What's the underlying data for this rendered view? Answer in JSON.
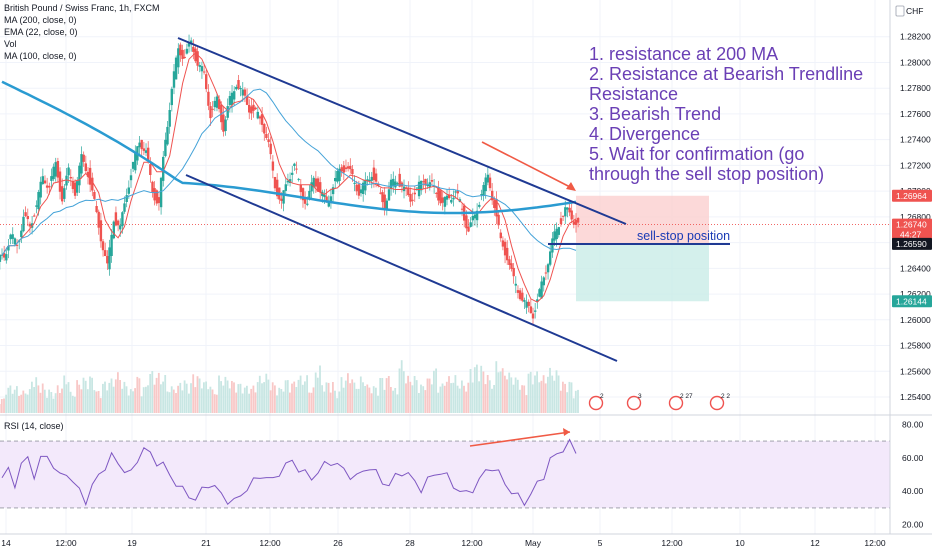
{
  "chart_data": {
    "type": "candlestick",
    "symbol_title": "British Pound / Swiss Franc, 1h, FXCM",
    "currency": "CHF",
    "indicators": [
      "MA (200, close, 0)",
      "EMA (22, close, 0)",
      "Vol",
      "MA (100, close, 0)"
    ],
    "price_axis": {
      "ticks": [
        "1.28200",
        "1.28000",
        "1.27800",
        "1.27600",
        "1.27400",
        "1.27200",
        "1.27000",
        "1.26800",
        "1.26600",
        "1.26400",
        "1.26200",
        "1.26000",
        "1.25800",
        "1.25600",
        "1.25400"
      ],
      "range": [
        1.253,
        1.284
      ]
    },
    "price_badges": [
      {
        "value": "1.26964",
        "color": "#ef5350"
      },
      {
        "value": "1.26740",
        "sub": "44:27",
        "color": "#ef5350"
      },
      {
        "value": "1.26590",
        "color": "#131722"
      },
      {
        "value": "1.26144",
        "color": "#26a69a"
      }
    ],
    "time_axis": [
      "14",
      "12:00",
      "19",
      "21",
      "12:00",
      "26",
      "28",
      "12:00",
      "May",
      "5",
      "12:00",
      "10",
      "12",
      "12:00"
    ],
    "rsi": {
      "title": "RSI (14, close)",
      "ticks": [
        "80.00",
        "60.00",
        "40.00",
        "20.00"
      ],
      "range": [
        15,
        85
      ],
      "upper": 70,
      "lower": 30
    },
    "close_path": [
      1.265,
      1.2665,
      1.2658,
      1.268,
      1.2672,
      1.269,
      1.271,
      1.2705,
      1.272,
      1.2695,
      1.2715,
      1.27,
      1.2725,
      1.2715,
      1.269,
      1.2665,
      1.264,
      1.268,
      1.267,
      1.27,
      1.272,
      1.274,
      1.273,
      1.27,
      1.269,
      1.274,
      1.278,
      1.281,
      1.2805,
      1.2815,
      1.28,
      1.279,
      1.276,
      1.277,
      1.275,
      1.277,
      1.2785,
      1.2775,
      1.2765,
      1.276,
      1.2755,
      1.2735,
      1.2705,
      1.269,
      1.271,
      1.272,
      1.27,
      1.269,
      1.271,
      1.27,
      1.269,
      1.2705,
      1.2715,
      1.272,
      1.271,
      1.27,
      1.2705,
      1.2715,
      1.27,
      1.269,
      1.2705,
      1.271,
      1.27,
      1.2695,
      1.27,
      1.271,
      1.2705,
      1.27,
      1.269,
      1.2695,
      1.27,
      1.2685,
      1.267,
      1.268,
      1.27,
      1.271,
      1.269,
      1.266,
      1.265,
      1.263,
      1.262,
      1.261,
      1.2605,
      1.262,
      1.264,
      1.266,
      1.2675,
      1.2685,
      1.268,
      1.2674
    ],
    "volume_path": [
      3,
      4,
      5,
      3,
      4,
      6,
      5,
      4,
      3,
      5,
      6,
      4,
      5,
      7,
      6,
      4,
      5,
      6,
      7,
      5,
      4,
      6,
      5,
      7,
      8,
      6,
      5,
      4,
      6,
      5,
      7,
      6,
      5,
      4,
      6,
      7,
      5,
      6,
      4,
      5,
      6,
      7,
      5,
      4,
      6,
      5,
      7,
      6,
      5,
      8,
      6,
      5,
      4,
      6,
      7,
      5,
      6,
      5,
      4,
      7,
      6,
      5,
      9,
      7,
      6,
      5,
      6,
      8,
      5,
      6,
      7,
      5,
      6,
      8,
      10,
      7,
      6,
      9,
      8,
      7,
      6,
      5,
      7,
      8,
      6,
      9,
      7,
      6,
      5,
      4
    ],
    "rsi_path": [
      48,
      52,
      45,
      55,
      60,
      50,
      58,
      62,
      55,
      48,
      52,
      45,
      40,
      35,
      42,
      50,
      55,
      60,
      58,
      52,
      50,
      60,
      65,
      62,
      58,
      55,
      50,
      45,
      40,
      38,
      35,
      40,
      45,
      42,
      38,
      35,
      33,
      38,
      42,
      45,
      50,
      48,
      46,
      52,
      55,
      58,
      54,
      50,
      48,
      52,
      55,
      58,
      56,
      52,
      50,
      48,
      52,
      55,
      50,
      46,
      44,
      48,
      52,
      50,
      45,
      42,
      46,
      50,
      52,
      48,
      44,
      40,
      38,
      42,
      46,
      52,
      55,
      50,
      45,
      40,
      36,
      34,
      38,
      44,
      50,
      58,
      62,
      66,
      68,
      64
    ],
    "annotations": [
      "1. resistance at 200 MA",
      "2. Resistance at Bearish Trendline",
      "Resistance",
      "3. Bearish Trend",
      "4. Divergence",
      "5. Wait for confirmation (go",
      "through the sell stop position)"
    ],
    "sell_stop_label": "sell-stop position",
    "colors": {
      "up": "#26a69a",
      "down": "#ef5350",
      "ma200": "#2a9bd1",
      "ema22": "#ef5350",
      "ma100": "#45a3d8",
      "trend": "#1f3a93",
      "rsi": "#7e57c2",
      "arrow": "#f05a45"
    }
  }
}
